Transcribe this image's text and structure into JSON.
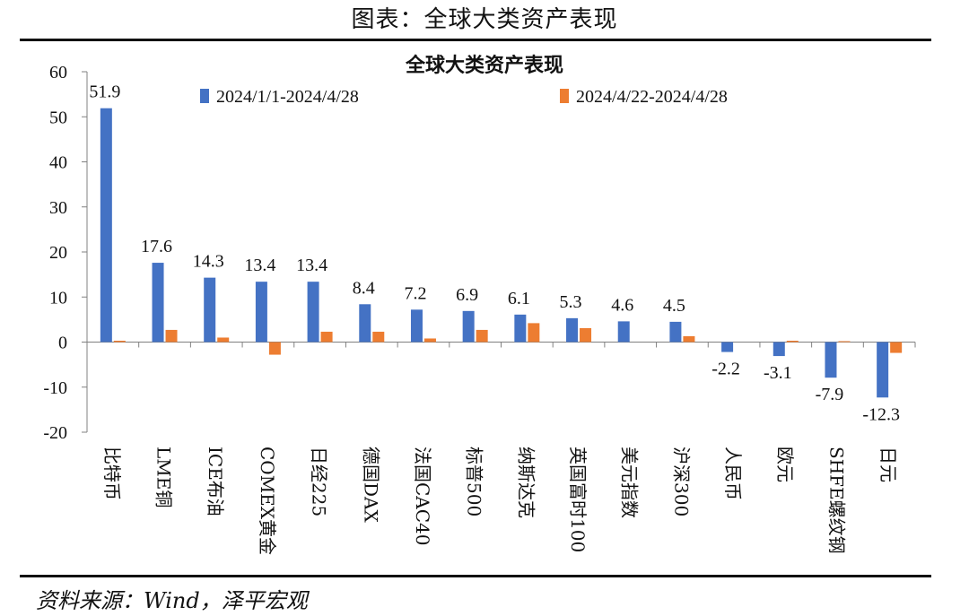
{
  "page_title": "图表：全球大类资产表现",
  "source": "资料来源：Wind，泽平宏观",
  "chart_data": {
    "type": "bar",
    "title": "全球大类资产表现",
    "categories": [
      "比特币",
      "LME铜",
      "ICE布油",
      "COMEX黄金",
      "日经225",
      "德国DAX",
      "法国CAC40",
      "标普500",
      "纳斯达克",
      "英国富时100",
      "美元指数",
      "沪深300",
      "人民币",
      "欧元",
      "SHFE螺纹钢",
      "日元"
    ],
    "series": [
      {
        "name": "2024/1/1-2024/4/28",
        "color": "#4472C4",
        "values": [
          51.9,
          17.6,
          14.3,
          13.4,
          13.4,
          8.4,
          7.2,
          6.9,
          6.1,
          5.3,
          4.6,
          4.5,
          -2.2,
          -3.1,
          -7.9,
          -12.3
        ],
        "labels": [
          "51.9",
          "17.6",
          "14.3",
          "13.4",
          "13.4",
          "8.4",
          "7.2",
          "6.9",
          "6.1",
          "5.3",
          "4.6",
          "4.5",
          "-2.2",
          "-3.1",
          "-7.9",
          "-12.3"
        ]
      },
      {
        "name": "2024/4/22-2024/4/28",
        "color": "#ED7D31",
        "values": [
          0.3,
          2.7,
          1.0,
          -2.8,
          2.3,
          2.3,
          0.8,
          2.7,
          4.2,
          3.1,
          0.0,
          1.3,
          0.0,
          0.3,
          0.2,
          -2.4
        ]
      }
    ],
    "ylim": [
      -20,
      60
    ],
    "yticks": [
      "60",
      "50",
      "40",
      "30",
      "20",
      "10",
      "0",
      "-10",
      "-20"
    ],
    "legend_position": "top"
  }
}
